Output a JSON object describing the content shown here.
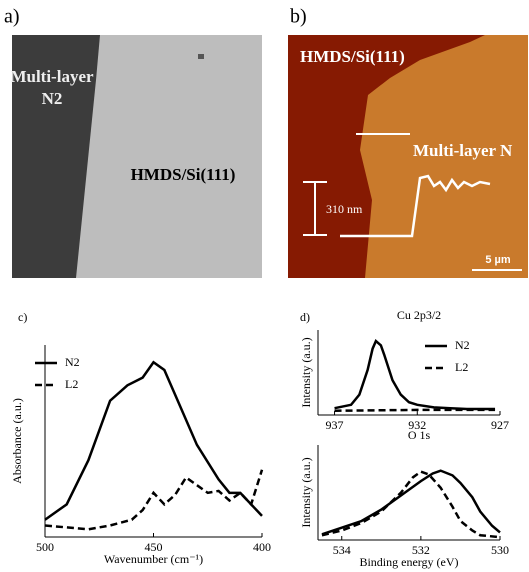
{
  "panels": {
    "a": {
      "label": "a)",
      "region_1": "Multi-layer",
      "region_2": "N2",
      "region_3": "HMDS/Si(111)"
    },
    "b": {
      "label": "b)",
      "region_1": "HMDS/Si(111)",
      "region_2": "Multi-layer N",
      "height": "310 nm",
      "scale": "5 µm"
    }
  },
  "chart_data": [
    {
      "type": "line",
      "panel_label": "c)",
      "xlabel": "Wavenumber (cm⁻¹)",
      "ylabel": "Absorbance (a.u.)",
      "xlim": [
        500,
        400
      ],
      "xticks": [
        500,
        450,
        400
      ],
      "ylim": [
        0,
        1
      ],
      "legend": "upper left",
      "series": [
        {
          "name": "N2",
          "color": "#000000",
          "style": "solid",
          "x": [
            500,
            490,
            480,
            470,
            462,
            455,
            450,
            445,
            440,
            430,
            420,
            415,
            410,
            405,
            400
          ],
          "values": [
            0.09,
            0.17,
            0.4,
            0.71,
            0.79,
            0.83,
            0.91,
            0.87,
            0.74,
            0.48,
            0.3,
            0.23,
            0.23,
            0.17,
            0.11
          ]
        },
        {
          "name": "L2",
          "color": "#000000",
          "style": "dashed",
          "x": [
            500,
            490,
            480,
            470,
            460,
            455,
            450,
            445,
            440,
            435,
            430,
            425,
            420,
            415,
            410,
            405,
            400
          ],
          "values": [
            0.06,
            0.05,
            0.04,
            0.06,
            0.09,
            0.14,
            0.23,
            0.17,
            0.22,
            0.31,
            0.27,
            0.23,
            0.24,
            0.19,
            0.23,
            0.17,
            0.35
          ]
        }
      ]
    },
    {
      "type": "line",
      "panel_label": "d)",
      "title": "Cu 2p3/2",
      "ylabel": "Intensity (a.u.)",
      "xlim": [
        938,
        927
      ],
      "xticks": [
        937,
        932,
        927
      ],
      "ylim": [
        0,
        1
      ],
      "legend": "upper right",
      "series": [
        {
          "name": "N2",
          "color": "#000000",
          "style": "solid",
          "x": [
            937,
            936,
            935.5,
            935,
            934.7,
            934.5,
            934.2,
            934,
            933.5,
            933,
            932.5,
            932,
            931,
            930,
            929,
            928,
            927.3
          ],
          "values": [
            0.08,
            0.12,
            0.24,
            0.53,
            0.78,
            0.87,
            0.82,
            0.71,
            0.41,
            0.24,
            0.15,
            0.12,
            0.09,
            0.08,
            0.07,
            0.07,
            0.07
          ]
        },
        {
          "name": "L2",
          "color": "#000000",
          "style": "dashed",
          "x": [
            937,
            932,
            927.3
          ],
          "values": [
            0.05,
            0.06,
            0.06
          ]
        }
      ]
    },
    {
      "type": "line",
      "title": "O 1s",
      "xlabel": "Binding energy (eV)",
      "ylabel": "Intensity (a.u.)",
      "xlim": [
        534.6,
        530
      ],
      "xticks": [
        534,
        532,
        530
      ],
      "ylim": [
        0,
        1
      ],
      "series": [
        {
          "color": "#000000",
          "style": "solid",
          "x": [
            534.5,
            534,
            533.5,
            533,
            532.5,
            532,
            531.7,
            531.5,
            531.2,
            531,
            530.7,
            530.5,
            530.2,
            530
          ],
          "values": [
            0.06,
            0.13,
            0.2,
            0.32,
            0.47,
            0.62,
            0.7,
            0.73,
            0.68,
            0.6,
            0.45,
            0.3,
            0.15,
            0.08
          ]
        },
        {
          "color": "#000000",
          "style": "dashed",
          "x": [
            534.5,
            534,
            533.5,
            533,
            532.5,
            532.2,
            532,
            531.8,
            531.5,
            531.2,
            531,
            530.7,
            530.5,
            530
          ],
          "values": [
            0.05,
            0.1,
            0.18,
            0.3,
            0.5,
            0.66,
            0.72,
            0.69,
            0.55,
            0.35,
            0.2,
            0.1,
            0.05,
            0.03
          ]
        }
      ]
    }
  ]
}
